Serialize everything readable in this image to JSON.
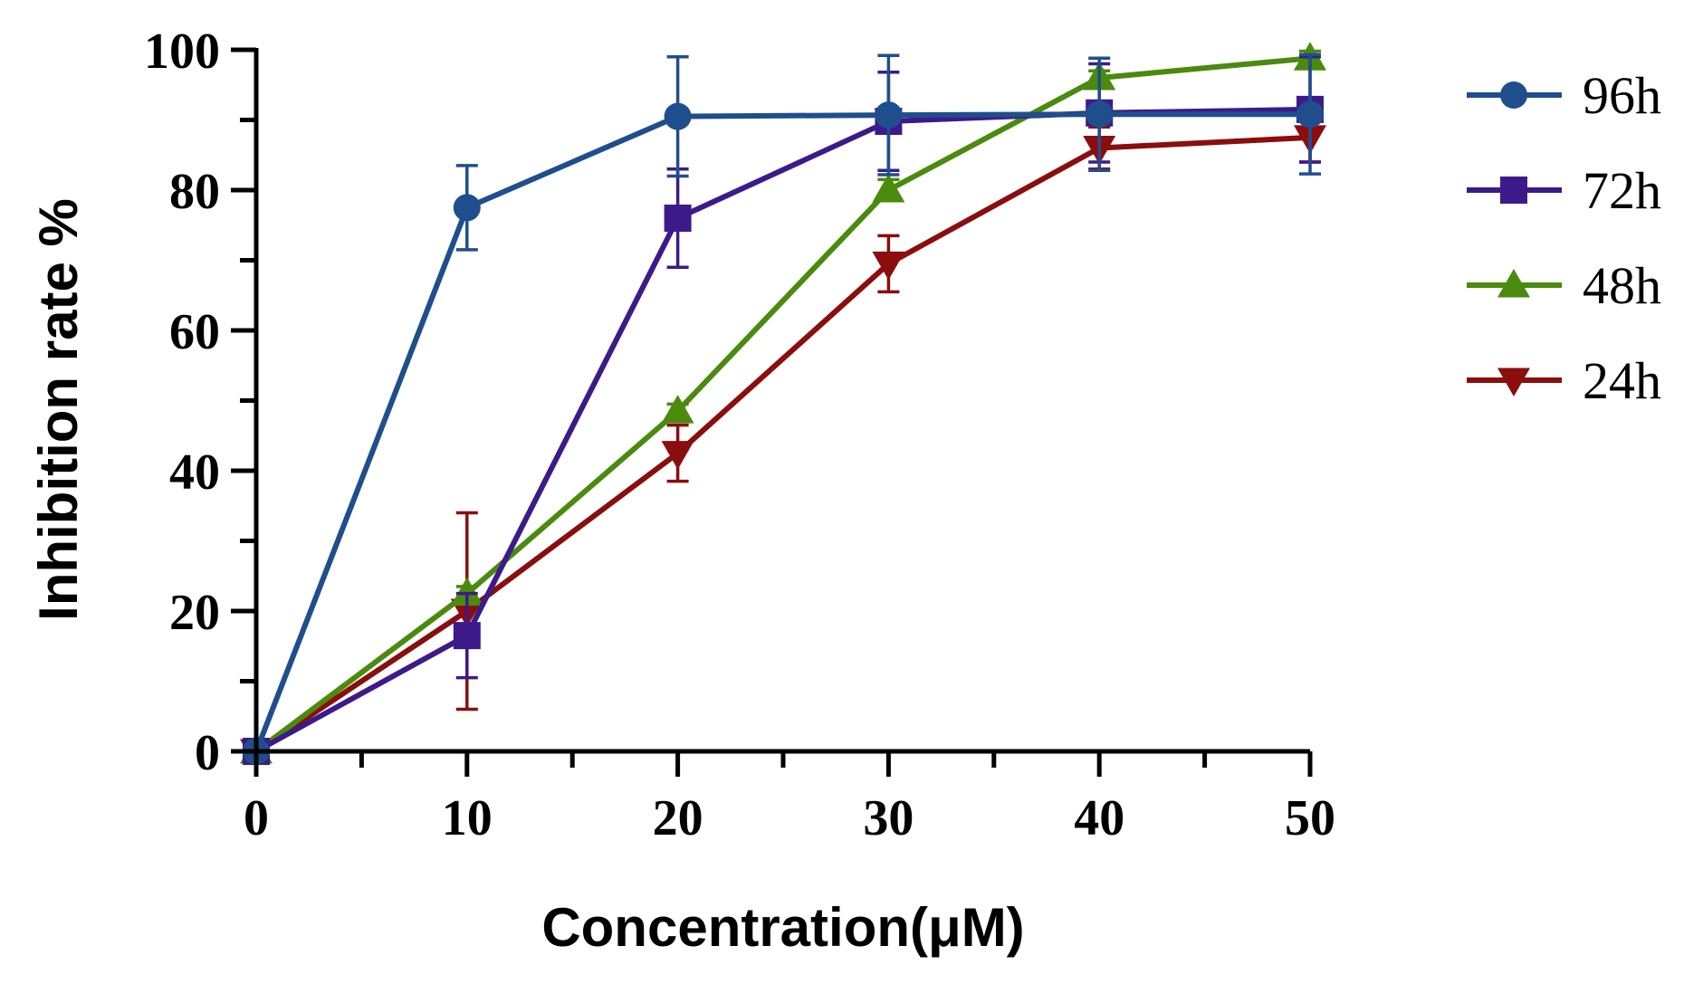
{
  "chart_data": {
    "type": "line",
    "title": "",
    "xlabel": "Concentration(μM)",
    "ylabel": "Inhibition rate %",
    "x": [
      0,
      10,
      20,
      30,
      40,
      50
    ],
    "xlim": [
      0,
      50
    ],
    "ylim": [
      0,
      100
    ],
    "xticks": [
      "0",
      "10",
      "20",
      "30",
      "40",
      "50"
    ],
    "yticks": [
      "0",
      "20",
      "40",
      "60",
      "80",
      "100"
    ],
    "grid": false,
    "legend_position": "right",
    "series": [
      {
        "name": "96h",
        "color": "#1f4e8c",
        "marker": "circle",
        "values": [
          0,
          77.5,
          90.5,
          90.7,
          90.8,
          90.8
        ],
        "errors": [
          0,
          6,
          8.5,
          8.5,
          8,
          8.5
        ]
      },
      {
        "name": "72h",
        "color": "#3d1a8a",
        "marker": "square",
        "values": [
          0,
          16.5,
          76,
          89.8,
          91,
          91.5
        ],
        "errors": [
          0,
          6,
          7,
          7,
          7,
          7.5
        ]
      },
      {
        "name": "48h",
        "color": "#4a8a0d",
        "marker": "triangle-up",
        "values": [
          0,
          22.5,
          48.5,
          80,
          96,
          98.8
        ],
        "errors": [
          0,
          1,
          1,
          1.5,
          1,
          1
        ]
      },
      {
        "name": "24h",
        "color": "#8b0d0d",
        "marker": "triangle-down",
        "values": [
          0,
          20,
          42.5,
          69.5,
          86,
          87.5
        ],
        "errors": [
          0,
          14,
          4,
          4,
          3,
          3.5
        ]
      }
    ]
  }
}
